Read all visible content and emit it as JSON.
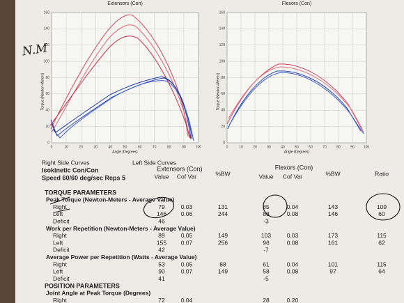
{
  "charts": [
    {
      "title": "Extensors (Con)",
      "x_label": "Angle (Degrees)",
      "y_label": "Torque (Newton-Meters)",
      "xticks": [
        0,
        10,
        20,
        30,
        40,
        50,
        60,
        70,
        80,
        90,
        100
      ],
      "yticks": [
        0,
        20,
        40,
        60,
        80,
        100,
        120,
        140,
        160
      ]
    },
    {
      "title": "Flexors (Con)",
      "x_label": "Angle (Degrees)",
      "y_label": "Torque (Newton-Meters)",
      "xticks": [
        0,
        10,
        20,
        30,
        40,
        50,
        60,
        70,
        80,
        90,
        100
      ],
      "yticks": [
        0,
        20,
        40,
        60,
        80,
        100,
        120,
        140,
        160
      ]
    }
  ],
  "handwriting": "N.M",
  "legend": {
    "right": "Right Side Curves",
    "left": "Left Side Curves"
  },
  "test": {
    "mode": "Isokinetic Con/Con",
    "speed": "Speed 60/60 deg/sec Reps 5"
  },
  "groups": [
    "Extensors (Con)",
    "Flexors (Con)"
  ],
  "columns": [
    "Value",
    "Cof Var",
    "%BW",
    "Value",
    "Cof Var",
    "%BW",
    "Ratio"
  ],
  "rows": [
    {
      "heading": "TORQUE PARAMETERS"
    },
    {
      "subheading": "Peak Torque (Newton-Meters - Average Value)"
    },
    {
      "label": "Right",
      "cells": [
        "79",
        "0.03",
        "131",
        "85",
        "0.04",
        "143",
        "109"
      ]
    },
    {
      "label": "Left",
      "cells": [
        "146",
        "0.06",
        "244",
        "88",
        "0.08",
        "146",
        "60"
      ]
    },
    {
      "label": "Deficit",
      "cells": [
        "46",
        null,
        null,
        "-3",
        null,
        null,
        null
      ]
    },
    {
      "subheading": "Work per Repetition (Newton-Meters - Average Value)"
    },
    {
      "label": "Right",
      "cells": [
        "89",
        "0.05",
        "149",
        "103",
        "0.03",
        "173",
        "115"
      ]
    },
    {
      "label": "Left",
      "cells": [
        "155",
        "0.07",
        "256",
        "96",
        "0.08",
        "161",
        "62"
      ]
    },
    {
      "label": "Deficit",
      "cells": [
        "42",
        null,
        null,
        "-7",
        null,
        null,
        null
      ]
    },
    {
      "subheading": "Average Power per Repetition (Watts - Average Value)"
    },
    {
      "label": "Right",
      "cells": [
        "53",
        "0.05",
        "88",
        "61",
        "0.04",
        "101",
        "115"
      ]
    },
    {
      "label": "Left",
      "cells": [
        "90",
        "0.07",
        "149",
        "58",
        "0.08",
        "97",
        "64"
      ]
    },
    {
      "label": "Deficit",
      "cells": [
        "41",
        null,
        null,
        "-5",
        null,
        null,
        null
      ]
    },
    {
      "heading": "POSITION PARAMETERS"
    },
    {
      "subheading": "Joint Angle at Peak Torque (Degrees)"
    },
    {
      "label": "Right",
      "cells": [
        "72",
        "0.04",
        null,
        "28",
        "0.20",
        null,
        null
      ]
    }
  ]
}
